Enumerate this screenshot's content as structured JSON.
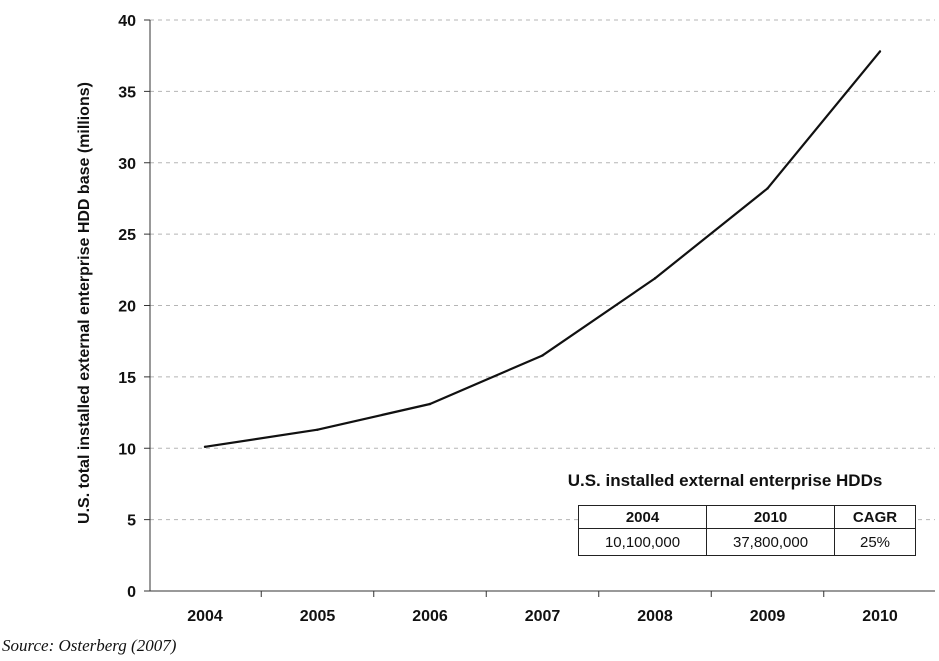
{
  "chart_data": {
    "type": "line",
    "ylabel": "U.S. total installed external enterprise HDD base (millions)",
    "xlabel": "",
    "categories": [
      "2004",
      "2005",
      "2006",
      "2007",
      "2008",
      "2009",
      "2010"
    ],
    "values": [
      10.1,
      11.3,
      13.1,
      16.5,
      21.9,
      28.2,
      37.8
    ],
    "ylim": [
      0,
      40
    ],
    "yticks": [
      "0",
      "5",
      "10",
      "15",
      "20",
      "25",
      "30",
      "35",
      "40"
    ],
    "grid": "horizontal dashed",
    "line_color": "#111111"
  },
  "inset": {
    "title": "U.S. installed external enterprise HDDs",
    "headers": [
      "2004",
      "2010",
      "CAGR"
    ],
    "row": [
      "10,100,000",
      "37,800,000",
      "25%"
    ]
  },
  "source": "Source: Osterberg (2007)"
}
